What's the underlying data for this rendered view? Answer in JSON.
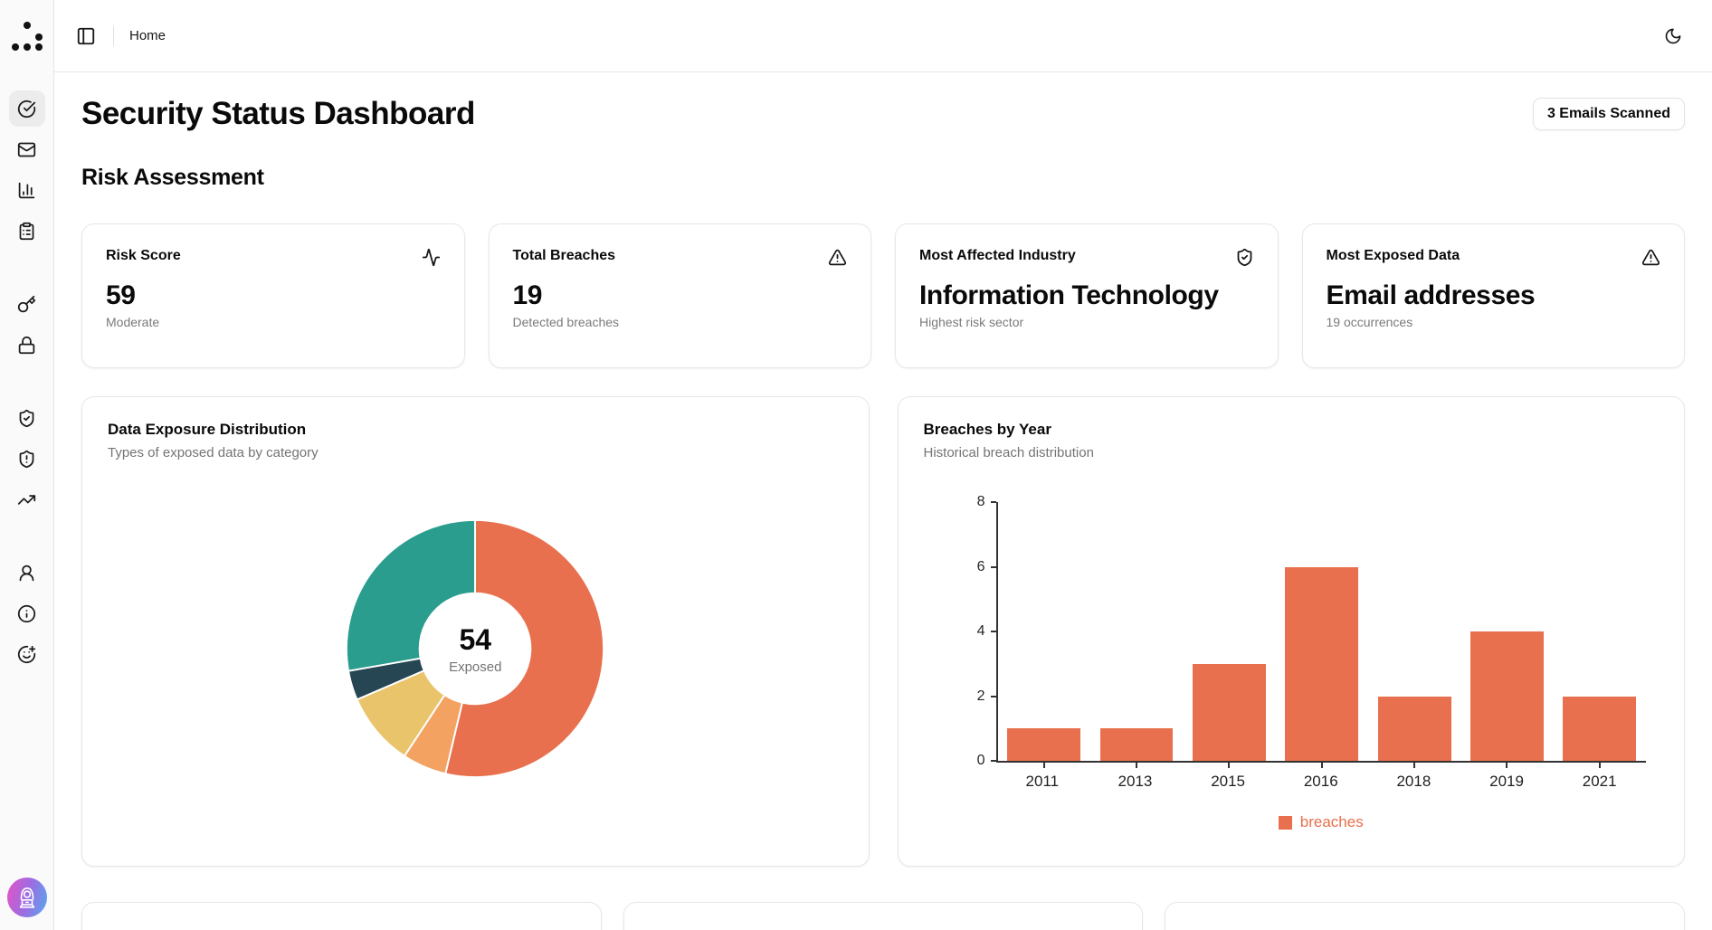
{
  "topbar": {
    "breadcrumb": "Home"
  },
  "sidebar": {
    "items": [
      "scan-status",
      "emails",
      "analytics",
      "reports",
      "keys",
      "passwords",
      "shield-check",
      "shield-alerts",
      "trends",
      "account",
      "about",
      "feedback"
    ]
  },
  "page": {
    "title": "Security Status Dashboard",
    "badge": "3 Emails Scanned",
    "section_title": "Risk Assessment"
  },
  "stat_cards": [
    {
      "label": "Risk Score",
      "icon": "activity-icon",
      "value": "59",
      "subtitle": "Moderate"
    },
    {
      "label": "Total Breaches",
      "icon": "alert-triangle-icon",
      "value": "19",
      "subtitle": "Detected breaches"
    },
    {
      "label": "Most Affected Industry",
      "icon": "shield-check-icon",
      "value": "Information Technology",
      "subtitle": "Highest risk sector"
    },
    {
      "label": "Most Exposed Data",
      "icon": "alert-triangle-icon",
      "value": "Email addresses",
      "subtitle": "19 occurrences"
    }
  ],
  "chart_data": [
    {
      "type": "pie",
      "title": "Data Exposure Distribution",
      "subtitle": "Types of exposed data by category",
      "donut": true,
      "start_angle_deg": 0,
      "center_value": "54",
      "center_label": "Exposed",
      "total": 54,
      "segments": [
        {
          "value": 29,
          "color": "#e8704e"
        },
        {
          "value": 3,
          "color": "#f4a261"
        },
        {
          "value": 5,
          "color": "#e9c46a"
        },
        {
          "value": 2,
          "color": "#264653"
        },
        {
          "value": 15,
          "color": "#2a9d8f"
        }
      ]
    },
    {
      "type": "bar",
      "title": "Breaches by Year",
      "subtitle": "Historical breach distribution",
      "categories": [
        "2011",
        "2013",
        "2015",
        "2016",
        "2018",
        "2019",
        "2021"
      ],
      "values": [
        1,
        1,
        3,
        6,
        2,
        4,
        2
      ],
      "ylim": [
        0,
        8
      ],
      "yticks": [
        0,
        2,
        4,
        6,
        8
      ],
      "bar_color": "#e8704e",
      "legend": [
        {
          "label": "breaches",
          "color": "#e8704e"
        }
      ],
      "grid": false,
      "legend_position": "bottom"
    }
  ]
}
